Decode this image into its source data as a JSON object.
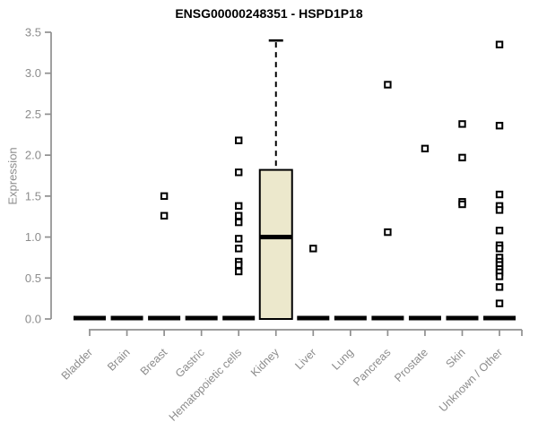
{
  "page": {
    "background": "#ffffff"
  },
  "chart_data": {
    "type": "boxplot",
    "title": "ENSG00000248351 - HSPD1P18",
    "ylabel": "Expression",
    "xlabel": "",
    "ylim": [
      0,
      3.5
    ],
    "yticks": [
      "0.0",
      "0.5",
      "1.0",
      "1.5",
      "2.0",
      "2.5",
      "3.0",
      "3.5"
    ],
    "grid": false,
    "legend": false,
    "box_fill": "#ece8cc",
    "box_border": "#000000",
    "median_color": "#000000",
    "axis_color": "#8f8f8f",
    "tick_label_color": "#8c8c8c",
    "title_color": "#000000",
    "categories": [
      "Bladder",
      "Brain",
      "Breast",
      "Gastric",
      "Hematopoietic cells",
      "Kidney",
      "Liver",
      "Lung",
      "Pancreas",
      "Prostate",
      "Skin",
      "Unknown / Other"
    ],
    "boxes": [
      {
        "category": "Bladder",
        "q1": 0,
        "median": 0,
        "q3": 0,
        "whisker_low": 0,
        "whisker_high": 0,
        "outliers": []
      },
      {
        "category": "Brain",
        "q1": 0,
        "median": 0,
        "q3": 0,
        "whisker_low": 0,
        "whisker_high": 0,
        "outliers": []
      },
      {
        "category": "Breast",
        "q1": 0,
        "median": 0,
        "q3": 0,
        "whisker_low": 0,
        "whisker_high": 0,
        "outliers": [
          1.5,
          1.26
        ]
      },
      {
        "category": "Gastric",
        "q1": 0,
        "median": 0,
        "q3": 0,
        "whisker_low": 0,
        "whisker_high": 0,
        "outliers": []
      },
      {
        "category": "Hematopoietic cells",
        "q1": 0,
        "median": 0,
        "q3": 0,
        "whisker_low": 0,
        "whisker_high": 0,
        "outliers": [
          2.18,
          1.79,
          1.38,
          1.26,
          1.18,
          0.98,
          0.86,
          0.7,
          0.66,
          0.58
        ]
      },
      {
        "category": "Kidney",
        "q1": 0,
        "median": 1.0,
        "q3": 1.82,
        "whisker_low": 0,
        "whisker_high": 3.4,
        "outliers": []
      },
      {
        "category": "Liver",
        "q1": 0,
        "median": 0,
        "q3": 0,
        "whisker_low": 0,
        "whisker_high": 0,
        "outliers": [
          0.86
        ]
      },
      {
        "category": "Lung",
        "q1": 0,
        "median": 0,
        "q3": 0,
        "whisker_low": 0,
        "whisker_high": 0,
        "outliers": []
      },
      {
        "category": "Pancreas",
        "q1": 0,
        "median": 0,
        "q3": 0,
        "whisker_low": 0,
        "whisker_high": 0,
        "outliers": [
          2.86,
          1.06
        ]
      },
      {
        "category": "Prostate",
        "q1": 0,
        "median": 0,
        "q3": 0,
        "whisker_low": 0,
        "whisker_high": 0,
        "outliers": [
          2.08
        ]
      },
      {
        "category": "Skin",
        "q1": 0,
        "median": 0,
        "q3": 0,
        "whisker_low": 0,
        "whisker_high": 0,
        "outliers": [
          2.38,
          1.97,
          1.43,
          1.4
        ]
      },
      {
        "category": "Unknown / Other",
        "q1": 0,
        "median": 0,
        "q3": 0,
        "whisker_low": 0,
        "whisker_high": 0,
        "outliers": [
          3.35,
          2.36,
          1.52,
          1.38,
          1.33,
          1.08,
          0.9,
          0.86,
          0.75,
          0.7,
          0.66,
          0.61,
          0.57,
          0.52,
          0.39,
          0.19
        ]
      }
    ]
  }
}
